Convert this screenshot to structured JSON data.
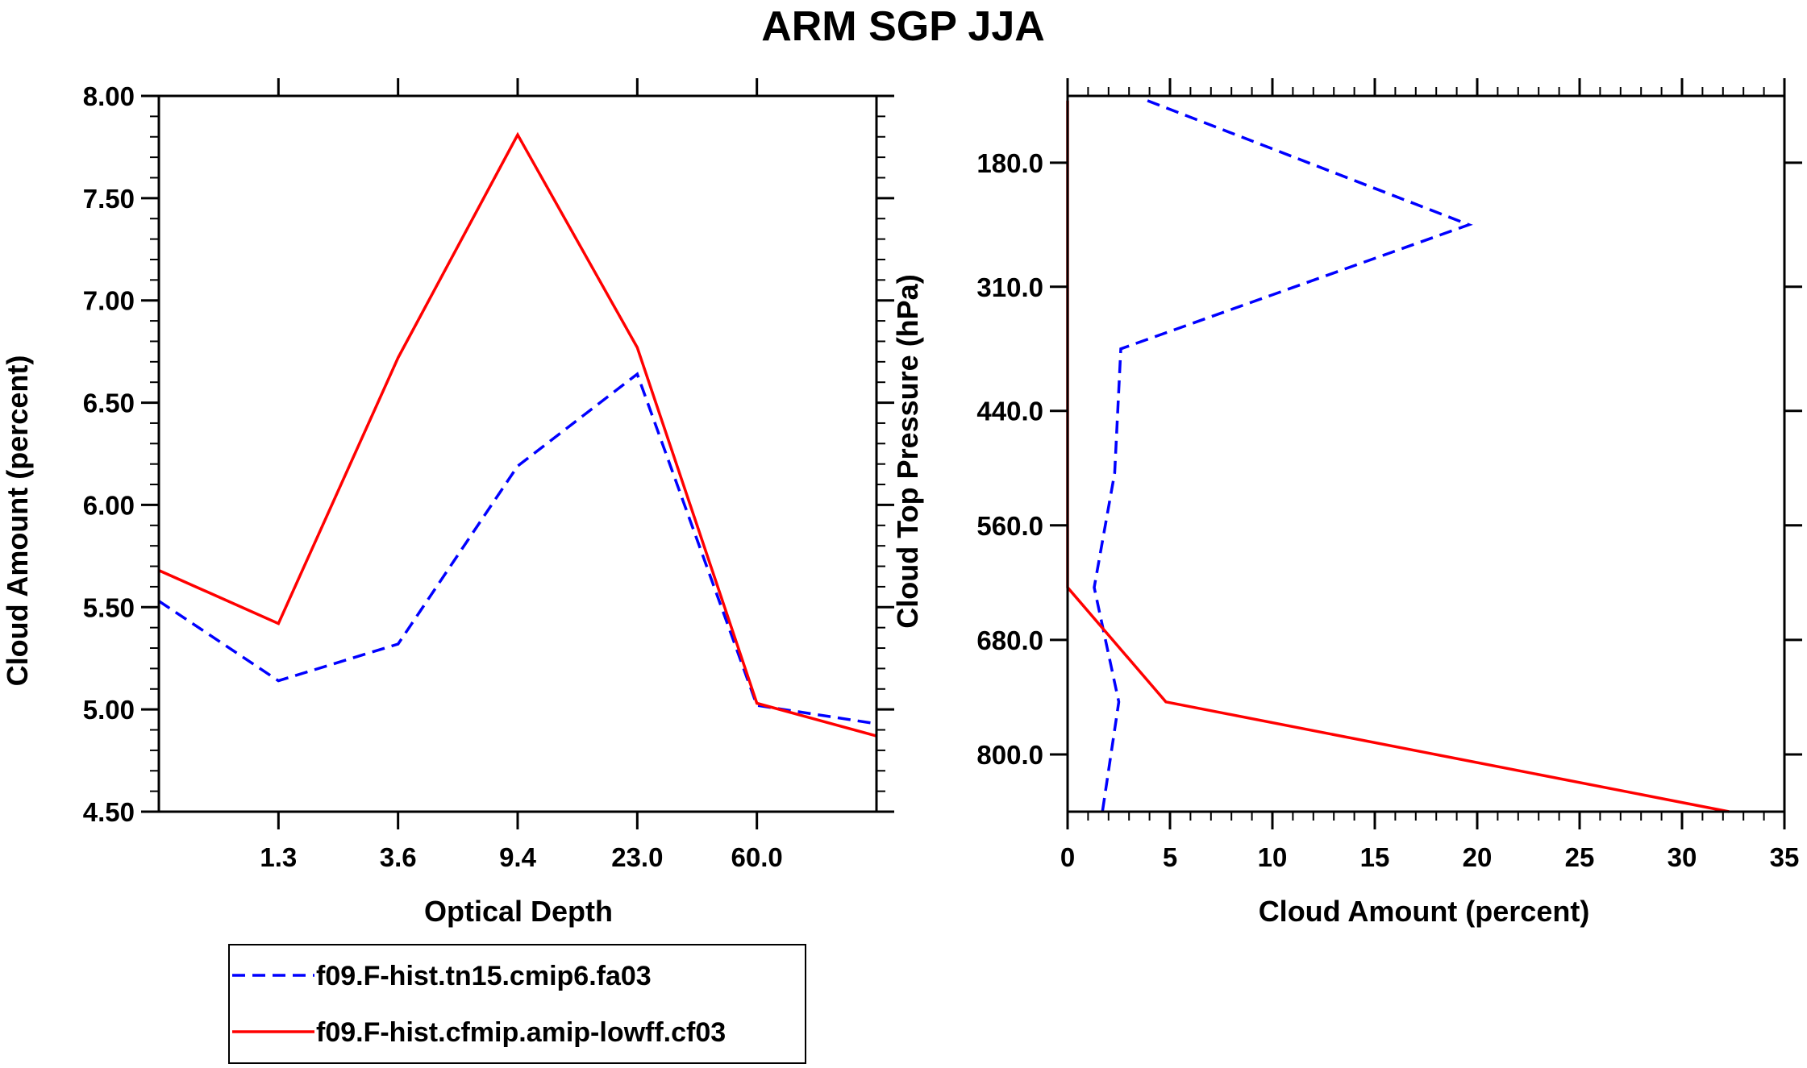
{
  "colors": {
    "series_1": "#0000ff",
    "series_2": "#ff0000",
    "axes": "#000000"
  },
  "chart_data": [
    {
      "type": "line",
      "title": "ARM SGP JJA",
      "xlabel": "Optical Depth",
      "ylabel": "Cloud Amount (percent)",
      "ylim": [
        4.5,
        8.0
      ],
      "x": [
        0,
        1,
        2,
        3,
        4,
        5
      ],
      "xlim": [
        -0.5,
        5.5
      ],
      "xticks": [
        0.5,
        1.5,
        2.5,
        3.5,
        4.5
      ],
      "xticklabels": [
        "1.3",
        "3.6",
        "9.4",
        "23.0",
        "60.0"
      ],
      "yticks": [
        4.5,
        5.0,
        5.5,
        6.0,
        6.5,
        7.0,
        7.5,
        8.0
      ],
      "yticklabels": [
        "4.50",
        "5.00",
        "5.50",
        "6.00",
        "6.50",
        "7.00",
        "7.50",
        "8.00"
      ],
      "series": [
        {
          "name": "f09.F-hist.tn15.cmip6.fa03",
          "style": "dashed",
          "x": [
            -0.5,
            0.5,
            1.5,
            2.5,
            3.5,
            4.5,
            5.5
          ],
          "values": [
            5.53,
            5.14,
            5.32,
            6.19,
            6.64,
            5.02,
            4.93
          ]
        },
        {
          "name": "f09.F-hist.cfmip.amip-lowff.cf03",
          "style": "solid",
          "x": [
            -0.5,
            0.5,
            1.5,
            2.5,
            3.5,
            4.5,
            5.5
          ],
          "values": [
            5.68,
            5.42,
            6.72,
            7.81,
            6.77,
            5.03,
            4.87
          ]
        }
      ]
    },
    {
      "type": "line",
      "xlabel": "Cloud Amount (percent)",
      "ylabel": "Cloud Top Pressure (hPa)",
      "xlim": [
        0,
        35
      ],
      "xticks": [
        0,
        5,
        10,
        15,
        20,
        25,
        30,
        35
      ],
      "xticklabels": [
        "0",
        "5",
        "10",
        "15",
        "20",
        "25",
        "30",
        "35"
      ],
      "ylim": [
        110,
        860
      ],
      "yticks": [
        180,
        310,
        440,
        560,
        680,
        800
      ],
      "yticklabels": [
        "180.0",
        "310.0",
        "440.0",
        "560.0",
        "680.0",
        "800.0"
      ],
      "series": [
        {
          "name": "f09.F-hist.tn15.cmip6.fa03",
          "style": "dashed",
          "x": [
            3.9,
            19.6,
            2.6,
            2.3,
            1.3,
            2.5,
            1.7
          ],
          "pressure": [
            115,
            245,
            375,
            505,
            625,
            745,
            860
          ]
        },
        {
          "name": "f09.F-hist.cfmip.amip-lowff.cf03",
          "style": "solid",
          "x": [
            0.0,
            0.0,
            0.0,
            0.0,
            0.0,
            4.8,
            32.3
          ],
          "pressure": [
            115,
            245,
            375,
            505,
            625,
            745,
            860
          ]
        }
      ]
    }
  ],
  "legend": [
    {
      "label": "f09.F-hist.tn15.cmip6.fa03",
      "style": "dashed"
    },
    {
      "label": "f09.F-hist.cfmip.amip-lowff.cf03",
      "style": "solid"
    }
  ]
}
